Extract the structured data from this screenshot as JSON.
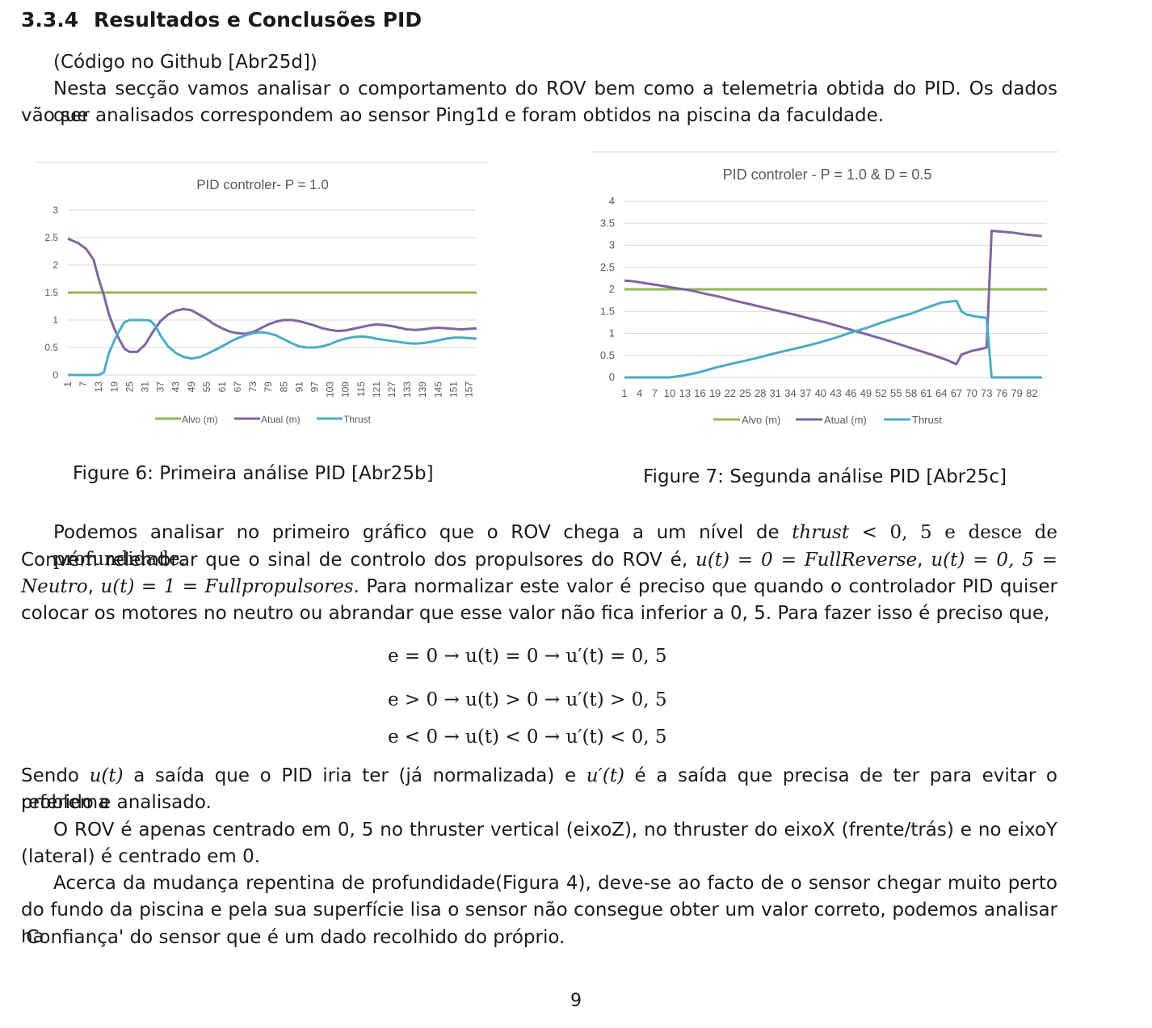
{
  "section": {
    "number": "3.3.4",
    "title": "Resultados e Conclusões PID"
  },
  "intro": {
    "code_ref": "(Código no Github [Abr25d])",
    "p1_line1": "Nesta secção vamos analisar o comportamento do ROV bem como a telemetria obtida do PID. Os dados que",
    "p1_line2": "vão ser analisados correspondem ao sensor Ping1d e foram obtidos na piscina da faculdade."
  },
  "figures": [
    {
      "caption": "Figure 6: Primeira análise PID [Abr25b]"
    },
    {
      "caption": "Figure 7: Segunda análise PID [Abr25c]"
    }
  ],
  "chart_data": [
    {
      "type": "line",
      "title": "PID controler- P = 1.0",
      "xlabel": "",
      "ylabel": "",
      "ylim": [
        0,
        3
      ],
      "yticks": [
        "0",
        "0.5",
        "1",
        "1.5",
        "2",
        "2.5",
        "3"
      ],
      "xlim": [
        1,
        160
      ],
      "xticks": [
        "1",
        "7",
        "13",
        "19",
        "25",
        "31",
        "37",
        "43",
        "49",
        "55",
        "61",
        "67",
        "73",
        "79",
        "85",
        "91",
        "97",
        "103",
        "109",
        "115",
        "121",
        "127",
        "133",
        "139",
        "145",
        "151",
        "157"
      ],
      "grid": true,
      "legend": "bottom",
      "colors": {
        "alvo": "#8DB94E",
        "atual": "#8064A2",
        "thrust": "#4BACC6"
      },
      "series": [
        {
          "name": "Alvo (m)",
          "x": [
            1,
            160
          ],
          "y": [
            1.5,
            1.5
          ]
        },
        {
          "name": "Atual (m)",
          "x": [
            1,
            5,
            8,
            11,
            13,
            15,
            17,
            19,
            21,
            23,
            25,
            28,
            31,
            34,
            37,
            40,
            43,
            46,
            49,
            52,
            55,
            58,
            61,
            64,
            67,
            70,
            73,
            76,
            79,
            82,
            85,
            88,
            91,
            94,
            97,
            100,
            103,
            106,
            109,
            112,
            115,
            118,
            121,
            124,
            127,
            130,
            133,
            136,
            139,
            142,
            145,
            148,
            151,
            154,
            157,
            160
          ],
          "y": [
            2.48,
            2.4,
            2.3,
            2.1,
            1.75,
            1.45,
            1.1,
            0.85,
            0.65,
            0.48,
            0.42,
            0.42,
            0.55,
            0.78,
            0.98,
            1.1,
            1.17,
            1.2,
            1.18,
            1.1,
            1.02,
            0.92,
            0.85,
            0.79,
            0.76,
            0.75,
            0.78,
            0.85,
            0.92,
            0.97,
            1.0,
            1.0,
            0.98,
            0.94,
            0.9,
            0.85,
            0.82,
            0.8,
            0.81,
            0.84,
            0.87,
            0.9,
            0.92,
            0.91,
            0.89,
            0.86,
            0.83,
            0.82,
            0.83,
            0.85,
            0.86,
            0.85,
            0.84,
            0.83,
            0.84,
            0.85
          ]
        },
        {
          "name": "Thrust",
          "x": [
            1,
            5,
            10,
            13,
            15,
            17,
            19,
            21,
            23,
            25,
            28,
            31,
            33,
            35,
            37,
            40,
            43,
            46,
            49,
            52,
            55,
            58,
            61,
            64,
            67,
            70,
            73,
            76,
            79,
            82,
            85,
            88,
            91,
            94,
            97,
            100,
            103,
            106,
            109,
            112,
            115,
            118,
            121,
            124,
            127,
            130,
            133,
            136,
            139,
            142,
            145,
            148,
            151,
            154,
            157,
            160
          ],
          "y": [
            0,
            0,
            0,
            0,
            0.05,
            0.4,
            0.62,
            0.8,
            0.96,
            1.0,
            1.0,
            1.0,
            0.99,
            0.9,
            0.72,
            0.52,
            0.4,
            0.33,
            0.3,
            0.32,
            0.38,
            0.45,
            0.52,
            0.6,
            0.67,
            0.72,
            0.76,
            0.78,
            0.76,
            0.72,
            0.65,
            0.58,
            0.52,
            0.5,
            0.5,
            0.52,
            0.56,
            0.62,
            0.66,
            0.69,
            0.7,
            0.69,
            0.66,
            0.64,
            0.62,
            0.6,
            0.58,
            0.57,
            0.58,
            0.6,
            0.63,
            0.66,
            0.68,
            0.68,
            0.67,
            0.66
          ]
        }
      ]
    },
    {
      "type": "line",
      "title": "PID controler - P = 1.0 & D = 0.5",
      "xlabel": "",
      "ylabel": "",
      "ylim": [
        0,
        4
      ],
      "yticks": [
        "0",
        "0.5",
        "1",
        "1.5",
        "2",
        "2.5",
        "3",
        "3.5",
        "4"
      ],
      "xlim": [
        1,
        85
      ],
      "xticks": [
        "1",
        "4",
        "7",
        "10",
        "13",
        "16",
        "19",
        "22",
        "25",
        "28",
        "31",
        "34",
        "37",
        "40",
        "43",
        "46",
        "49",
        "52",
        "55",
        "58",
        "61",
        "64",
        "67",
        "70",
        "73",
        "76",
        "79",
        "82"
      ],
      "grid": true,
      "legend": "bottom",
      "colors": {
        "alvo": "#8DB94E",
        "atual": "#8064A2",
        "thrust": "#4BACC6"
      },
      "series": [
        {
          "name": "Alvo (m)",
          "x": [
            1,
            85
          ],
          "y": [
            2.0,
            2.0
          ]
        },
        {
          "name": "Atual (m)",
          "x": [
            1,
            3,
            5,
            8,
            11,
            14,
            17,
            20,
            23,
            26,
            29,
            32,
            35,
            38,
            41,
            44,
            47,
            50,
            53,
            56,
            59,
            62,
            65,
            66,
            67,
            68,
            70,
            72,
            73,
            74,
            75,
            78,
            81,
            84
          ],
          "y": [
            2.2,
            2.18,
            2.14,
            2.09,
            2.03,
            1.98,
            1.9,
            1.83,
            1.74,
            1.66,
            1.58,
            1.5,
            1.42,
            1.33,
            1.25,
            1.15,
            1.05,
            0.95,
            0.85,
            0.74,
            0.63,
            0.52,
            0.4,
            0.35,
            0.3,
            0.52,
            0.6,
            0.65,
            0.68,
            3.33,
            3.32,
            3.29,
            3.24,
            3.21
          ]
        },
        {
          "name": "Thrust",
          "x": [
            1,
            10,
            13,
            16,
            19,
            22,
            25,
            28,
            31,
            34,
            37,
            40,
            43,
            46,
            49,
            52,
            55,
            58,
            61,
            64,
            67,
            68,
            69,
            71,
            73,
            74,
            75,
            84
          ],
          "y": [
            0,
            0,
            0.05,
            0.12,
            0.22,
            0.3,
            0.38,
            0.46,
            0.55,
            0.63,
            0.71,
            0.8,
            0.9,
            1.02,
            1.12,
            1.24,
            1.35,
            1.45,
            1.58,
            1.7,
            1.74,
            1.5,
            1.43,
            1.38,
            1.35,
            0,
            0,
            0
          ]
        }
      ]
    }
  ],
  "discussion": {
    "p2_line1": [
      "Podemos analisar no primeiro gráfico que o ROV chega a um nível de ",
      "thrust",
      " < 0, 5 e desce de profundidade."
    ],
    "p2_line2": [
      "Convém relembrar que o sinal de controlo dos propulsores do ROV é, ",
      "u(t) = 0 = FullReverse",
      ", ",
      "u(t) = 0, 5 ="
    ],
    "p2_line3": [
      "Neutro",
      ", ",
      "u(t) = 1 = Fullpropulsores",
      ". Para normalizar este valor é preciso que quando o controlador PID quiser"
    ],
    "p2_line4": "colocar os motores no neutro ou abrandar que esse valor não fica inferior a 0, 5. Para fazer isso é preciso que,"
  },
  "equations": [
    "e = 0 → u(t) = 0 → u′(t) = 0, 5",
    "e > 0 → u(t) > 0 → u′(t) > 0, 5",
    "e < 0 → u(t) < 0 → u′(t) < 0, 5"
  ],
  "conclusion": {
    "p3_line1": [
      "Sendo ",
      "u(t)",
      " a saída que o PID iria ter (já normalizada) e ",
      "u′(t)",
      " é a saída que precisa de ter para evitar o problema"
    ],
    "p3_line2": "referido e analisado.",
    "p4_line1": "O ROV é apenas centrado em 0, 5 no thruster vertical (eixoZ), no thruster do eixoX (frente/trás) e no eixoY",
    "p4_line2": "(lateral) é centrado em 0.",
    "p5_line1": "Acerca da mudança repentina de profundidade(Figura 4), deve-se ao facto de o sensor chegar muito perto",
    "p5_line2": "do fundo da piscina e pela sua superfície lisa o sensor não consegue obter um valor correto, podemos analisar na",
    "p5_line3": "'Confiança' do sensor que é um dado recolhido do próprio."
  },
  "page_number": "9"
}
